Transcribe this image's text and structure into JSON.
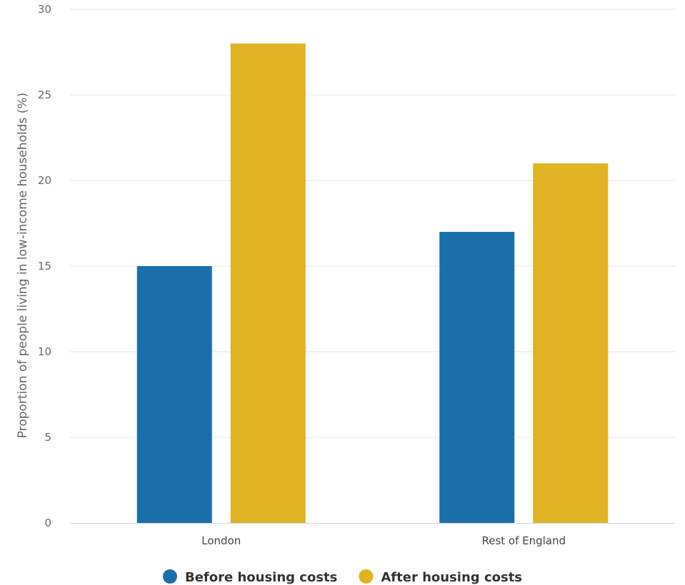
{
  "chart_data": {
    "type": "bar",
    "categories": [
      "London",
      "Rest of England"
    ],
    "series": [
      {
        "name": "Before housing costs",
        "values": [
          15,
          17
        ],
        "color": "#1a6faa"
      },
      {
        "name": "After housing costs",
        "values": [
          28,
          21
        ],
        "color": "#e0b324"
      }
    ],
    "title": "",
    "xlabel": "",
    "ylabel": "Proportion of people living in low-income households (%)",
    "ylim": [
      0,
      30
    ],
    "yticks": [
      0,
      5,
      10,
      15,
      20,
      25,
      30
    ],
    "grid": true,
    "legend": "bottom-center"
  }
}
